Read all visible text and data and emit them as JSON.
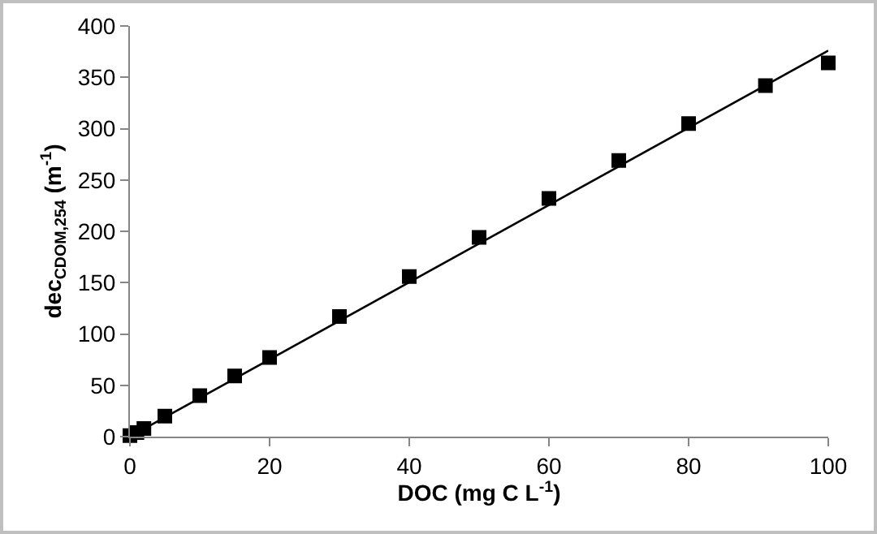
{
  "chart_data": {
    "type": "scatter",
    "xlabel": "DOC (mg C L$^{-1}$)",
    "ylabel": "dec$_{CDOM,254}$ (m$^{-1}$)",
    "xlim": [
      0,
      100
    ],
    "xticks": [
      0,
      20,
      40,
      60,
      80,
      100
    ],
    "ylim": [
      0,
      400
    ],
    "yticks": [
      0,
      50,
      100,
      150,
      200,
      250,
      300,
      350,
      400
    ],
    "grid": false,
    "series": [
      {
        "color": "#000000",
        "marker": "square",
        "x": [
          0,
          1,
          2,
          5,
          10,
          15,
          20,
          30,
          40,
          50,
          60,
          70,
          80,
          91,
          100
        ],
        "values": [
          1,
          4,
          8,
          20,
          40,
          59,
          77,
          117,
          156,
          194,
          232,
          269,
          305,
          342,
          364
        ]
      },
      {
        "type": "line",
        "color": "#000000",
        "line_style": "solid",
        "marker": "none",
        "x": [
          0,
          100
        ],
        "values": [
          0,
          376
        ]
      }
    ]
  }
}
